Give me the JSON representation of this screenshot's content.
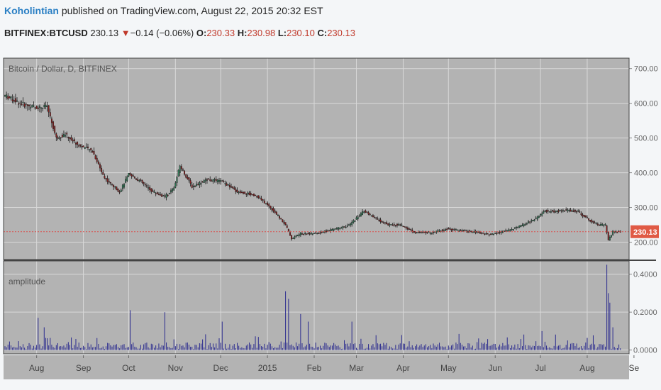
{
  "header": {
    "author": "Koholintian",
    "published_text": "published on TradingView.com, August 22, 2015 20:32 EST",
    "symbol": "BITFINEX:BTCUSD",
    "last": "230.13",
    "change_arrow": "▼",
    "change": "−0.14 (−0.06%)",
    "o_label": "O:",
    "o_val": "230.33",
    "h_label": "H:",
    "h_val": "230.98",
    "l_label": "L:",
    "l_val": "230.10",
    "c_label": "C:",
    "c_val": "230.13"
  },
  "colors": {
    "panel_bg": "#b3b3b3",
    "grid": "#d9d9d9",
    "up": "#2e7d57",
    "down": "#8b1a1a",
    "amplitude": "#2b2b8f",
    "price_line": "#d9534f",
    "price_label_bg": "#e05a45"
  },
  "chart_data": [
    {
      "type": "candlestick",
      "legend": "Bitcoin / Dollar, D, BITFINEX",
      "ylim": [
        150,
        730
      ],
      "y_ticks": [
        "700.00",
        "600.00",
        "500.00",
        "400.00",
        "300.00",
        "200.00"
      ],
      "y_tick_values": [
        700,
        600,
        500,
        400,
        300,
        200
      ],
      "last_price_label": "230.13",
      "last_price": 230.13,
      "x_ticks": [
        "Aug",
        "Sep",
        "Oct",
        "Nov",
        "Dec",
        "2015",
        "Feb",
        "Mar",
        "Apr",
        "May",
        "Jun",
        "Jul",
        "Aug",
        "Se"
      ],
      "x_tick_days": [
        21,
        52,
        82,
        113,
        143,
        174,
        205,
        233,
        264,
        294,
        325,
        355,
        386,
        417
      ],
      "start_date": "2014-07-11",
      "end_date": "2015-08-22",
      "price_anchors": [
        [
          0,
          622
        ],
        [
          10,
          600
        ],
        [
          20,
          588
        ],
        [
          28,
          590
        ],
        [
          34,
          500
        ],
        [
          40,
          510
        ],
        [
          48,
          482
        ],
        [
          58,
          462
        ],
        [
          66,
          385
        ],
        [
          76,
          345
        ],
        [
          82,
          395
        ],
        [
          90,
          375
        ],
        [
          98,
          345
        ],
        [
          106,
          330
        ],
        [
          112,
          355
        ],
        [
          116,
          420
        ],
        [
          124,
          360
        ],
        [
          134,
          380
        ],
        [
          144,
          375
        ],
        [
          154,
          345
        ],
        [
          166,
          335
        ],
        [
          176,
          300
        ],
        [
          186,
          250
        ],
        [
          190,
          210
        ],
        [
          196,
          225
        ],
        [
          206,
          225
        ],
        [
          216,
          235
        ],
        [
          228,
          248
        ],
        [
          238,
          290
        ],
        [
          244,
          272
        ],
        [
          254,
          250
        ],
        [
          262,
          250
        ],
        [
          272,
          228
        ],
        [
          282,
          228
        ],
        [
          294,
          238
        ],
        [
          304,
          232
        ],
        [
          314,
          228
        ],
        [
          322,
          222
        ],
        [
          332,
          232
        ],
        [
          344,
          250
        ],
        [
          352,
          268
        ],
        [
          358,
          290
        ],
        [
          364,
          288
        ],
        [
          372,
          292
        ],
        [
          380,
          288
        ],
        [
          388,
          262
        ],
        [
          394,
          250
        ],
        [
          398,
          250
        ],
        [
          400,
          205
        ],
        [
          403,
          230
        ],
        [
          408,
          230
        ]
      ]
    },
    {
      "type": "bar",
      "legend": "amplitude",
      "ylim": [
        -0.02,
        0.47
      ],
      "y_ticks": [
        "0.4000",
        "0.2000",
        "0.0000"
      ],
      "y_tick_values": [
        0.4,
        0.2,
        0.0
      ],
      "spikes": [
        [
          22,
          0.17
        ],
        [
          26,
          0.12
        ],
        [
          83,
          0.21
        ],
        [
          106,
          0.2
        ],
        [
          144,
          0.15
        ],
        [
          186,
          0.31
        ],
        [
          188,
          0.27
        ],
        [
          196,
          0.19
        ],
        [
          201,
          0.15
        ],
        [
          230,
          0.15
        ],
        [
          356,
          0.1
        ],
        [
          399,
          0.45
        ],
        [
          400,
          0.3
        ],
        [
          401,
          0.25
        ],
        [
          403,
          0.12
        ]
      ]
    }
  ]
}
